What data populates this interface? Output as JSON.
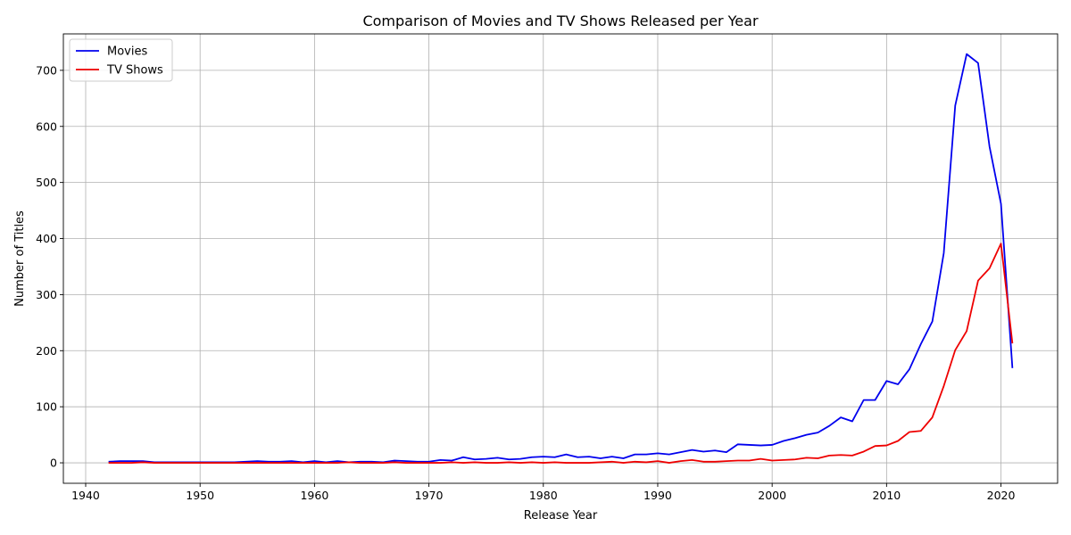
{
  "chart_data": {
    "type": "line",
    "title": "Comparison of Movies and TV Shows Released per Year",
    "xlabel": "Release Year",
    "ylabel": "Number of Titles",
    "xlim": [
      1938.05,
      2024.95
    ],
    "ylim": [
      -36.5,
      765
    ],
    "xticks": [
      1940,
      1950,
      1960,
      1970,
      1980,
      1990,
      2000,
      2010,
      2020
    ],
    "yticks": [
      0,
      100,
      200,
      300,
      400,
      500,
      600,
      700
    ],
    "grid": true,
    "legend_position": "top-left",
    "x": [
      1942,
      1943,
      1944,
      1945,
      1946,
      1947,
      1948,
      1949,
      1950,
      1951,
      1952,
      1953,
      1954,
      1955,
      1956,
      1957,
      1958,
      1959,
      1960,
      1961,
      1962,
      1963,
      1964,
      1965,
      1966,
      1967,
      1968,
      1969,
      1970,
      1971,
      1972,
      1973,
      1974,
      1975,
      1976,
      1977,
      1978,
      1979,
      1980,
      1981,
      1982,
      1983,
      1984,
      1985,
      1986,
      1987,
      1988,
      1989,
      1990,
      1991,
      1992,
      1993,
      1994,
      1995,
      1996,
      1997,
      1998,
      1999,
      2000,
      2001,
      2002,
      2003,
      2004,
      2005,
      2006,
      2007,
      2008,
      2009,
      2010,
      2011,
      2012,
      2013,
      2014,
      2015,
      2016,
      2017,
      2018,
      2019,
      2020,
      2021
    ],
    "series": [
      {
        "name": "Movies",
        "color": "#0000ee",
        "values": [
          2,
          3,
          3,
          3,
          1,
          1,
          1,
          1,
          1,
          1,
          1,
          1,
          2,
          3,
          2,
          2,
          3,
          1,
          3,
          1,
          3,
          1,
          2,
          2,
          1,
          4,
          3,
          2,
          2,
          5,
          4,
          10,
          6,
          7,
          9,
          6,
          7,
          10,
          11,
          10,
          15,
          10,
          11,
          8,
          11,
          8,
          15,
          15,
          17,
          15,
          19,
          23,
          20,
          22,
          19,
          33,
          32,
          31,
          32,
          39,
          44,
          50,
          54,
          66,
          81,
          74,
          112,
          112,
          146,
          140,
          167,
          212,
          252,
          374,
          637,
          729,
          713,
          564,
          462,
          169
        ]
      },
      {
        "name": "TV Shows",
        "color": "#ee0000",
        "values": [
          0,
          0,
          0,
          1,
          0,
          0,
          0,
          0,
          0,
          0,
          0,
          0,
          0,
          0,
          0,
          0,
          0,
          0,
          0,
          0,
          0,
          1,
          0,
          0,
          0,
          1,
          0,
          0,
          0,
          0,
          1,
          0,
          1,
          0,
          0,
          1,
          0,
          1,
          0,
          1,
          0,
          0,
          0,
          1,
          2,
          0,
          2,
          1,
          3,
          0,
          3,
          5,
          2,
          2,
          3,
          4,
          4,
          7,
          4,
          5,
          6,
          9,
          8,
          13,
          14,
          13,
          20,
          30,
          31,
          39,
          55,
          57,
          81,
          137,
          201,
          235,
          325,
          347,
          391,
          213
        ]
      }
    ]
  }
}
